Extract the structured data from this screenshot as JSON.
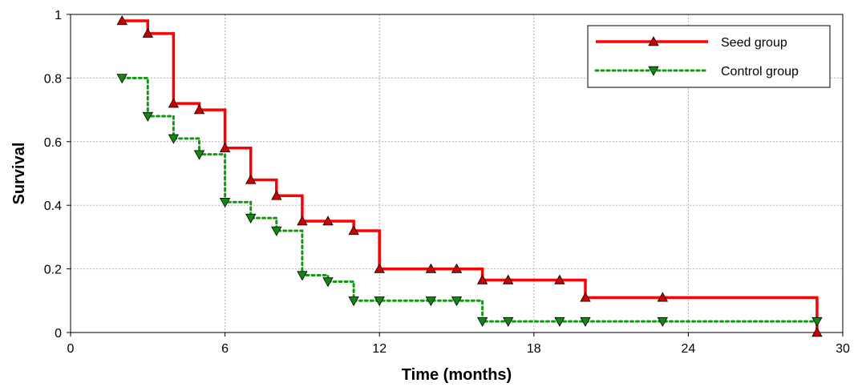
{
  "chart_data": {
    "type": "line",
    "title": "",
    "xlabel": "Time (months)",
    "ylabel": "Survival",
    "xlim": [
      0,
      30
    ],
    "ylim": [
      0,
      1
    ],
    "xticks": [
      0,
      6,
      12,
      18,
      24,
      30
    ],
    "yticks": [
      0,
      0.2,
      0.4,
      0.6,
      0.8,
      1
    ],
    "xtick_labels": [
      "0",
      "6",
      "12",
      "18",
      "24",
      "30"
    ],
    "ytick_labels": [
      "0",
      "0.2",
      "0.4",
      "0.6",
      "0.8",
      "1"
    ],
    "grid": true,
    "legend_position": "top-right",
    "step": true,
    "series": [
      {
        "name": "Seed group",
        "color": "#ff0000",
        "line_style": "solid",
        "marker": "triangle-up",
        "marker_color": "#cc0000",
        "steps": [
          {
            "x": 2,
            "y": 0.98
          },
          {
            "x": 3,
            "y": 0.94
          },
          {
            "x": 4,
            "y": 0.72
          },
          {
            "x": 5,
            "y": 0.7
          },
          {
            "x": 6,
            "y": 0.58
          },
          {
            "x": 7,
            "y": 0.48
          },
          {
            "x": 8,
            "y": 0.43
          },
          {
            "x": 9,
            "y": 0.35
          },
          {
            "x": 11,
            "y": 0.32
          },
          {
            "x": 12,
            "y": 0.2
          },
          {
            "x": 16,
            "y": 0.165
          },
          {
            "x": 20,
            "y": 0.11
          },
          {
            "x": 29,
            "y": 0.0
          }
        ],
        "markers": [
          {
            "x": 2,
            "y": 0.98
          },
          {
            "x": 3,
            "y": 0.94
          },
          {
            "x": 4,
            "y": 0.72
          },
          {
            "x": 5,
            "y": 0.7
          },
          {
            "x": 6,
            "y": 0.58
          },
          {
            "x": 7,
            "y": 0.48
          },
          {
            "x": 8,
            "y": 0.43
          },
          {
            "x": 9,
            "y": 0.35
          },
          {
            "x": 10,
            "y": 0.35
          },
          {
            "x": 11,
            "y": 0.32
          },
          {
            "x": 12,
            "y": 0.2
          },
          {
            "x": 14,
            "y": 0.2
          },
          {
            "x": 15,
            "y": 0.2
          },
          {
            "x": 16,
            "y": 0.165
          },
          {
            "x": 17,
            "y": 0.165
          },
          {
            "x": 19,
            "y": 0.165
          },
          {
            "x": 20,
            "y": 0.11
          },
          {
            "x": 23,
            "y": 0.11
          },
          {
            "x": 29,
            "y": 0.0
          }
        ]
      },
      {
        "name": "Control group",
        "color": "#119911",
        "line_style": "dotted",
        "marker": "triangle-down",
        "marker_color": "#118811",
        "steps": [
          {
            "x": 2,
            "y": 0.8
          },
          {
            "x": 3,
            "y": 0.68
          },
          {
            "x": 4,
            "y": 0.61
          },
          {
            "x": 5,
            "y": 0.56
          },
          {
            "x": 6,
            "y": 0.41
          },
          {
            "x": 7,
            "y": 0.36
          },
          {
            "x": 8,
            "y": 0.32
          },
          {
            "x": 9,
            "y": 0.18
          },
          {
            "x": 10,
            "y": 0.16
          },
          {
            "x": 11,
            "y": 0.1
          },
          {
            "x": 16,
            "y": 0.035
          },
          {
            "x": 29,
            "y": 0.035
          }
        ],
        "markers": [
          {
            "x": 2,
            "y": 0.8
          },
          {
            "x": 3,
            "y": 0.68
          },
          {
            "x": 4,
            "y": 0.61
          },
          {
            "x": 5,
            "y": 0.56
          },
          {
            "x": 6,
            "y": 0.41
          },
          {
            "x": 7,
            "y": 0.36
          },
          {
            "x": 8,
            "y": 0.32
          },
          {
            "x": 9,
            "y": 0.18
          },
          {
            "x": 10,
            "y": 0.16
          },
          {
            "x": 11,
            "y": 0.1
          },
          {
            "x": 12,
            "y": 0.1
          },
          {
            "x": 14,
            "y": 0.1
          },
          {
            "x": 15,
            "y": 0.1
          },
          {
            "x": 16,
            "y": 0.035
          },
          {
            "x": 17,
            "y": 0.035
          },
          {
            "x": 19,
            "y": 0.035
          },
          {
            "x": 20,
            "y": 0.035
          },
          {
            "x": 23,
            "y": 0.035
          },
          {
            "x": 29,
            "y": 0.035
          }
        ]
      }
    ]
  }
}
